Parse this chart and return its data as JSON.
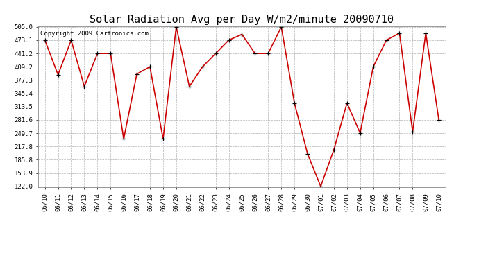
{
  "title": "Solar Radiation Avg per Day W/m2/minute 20090710",
  "copyright": "Copyright 2009 Cartronics.com",
  "labels": [
    "06/10",
    "06/11",
    "06/12",
    "06/13",
    "06/14",
    "06/15",
    "06/16",
    "06/17",
    "06/18",
    "06/19",
    "06/20",
    "06/21",
    "06/22",
    "06/23",
    "06/24",
    "06/25",
    "06/26",
    "06/27",
    "06/28",
    "06/29",
    "06/30",
    "07/01",
    "07/02",
    "07/03",
    "07/04",
    "07/05",
    "07/06",
    "07/07",
    "07/08",
    "07/09",
    "07/10"
  ],
  "values": [
    473,
    390,
    473,
    362,
    441,
    441,
    236,
    392,
    409,
    236,
    505,
    362,
    409,
    441,
    473,
    487,
    441,
    441,
    505,
    322,
    200,
    122,
    210,
    322,
    250,
    409,
    473,
    490,
    253,
    490,
    281
  ],
  "line_color": "#cc0000",
  "marker_color": "#000000",
  "bg_color": "#ffffff",
  "plot_bg_color": "#ffffff",
  "grid_color": "#aaaaaa",
  "ylim_min": 122.0,
  "ylim_max": 505.0,
  "yticks": [
    122.0,
    153.9,
    185.8,
    217.8,
    249.7,
    281.6,
    313.5,
    345.4,
    377.3,
    409.2,
    441.2,
    473.1,
    505.0
  ],
  "title_fontsize": 11,
  "copyright_fontsize": 6.5,
  "tick_fontsize": 6.5
}
